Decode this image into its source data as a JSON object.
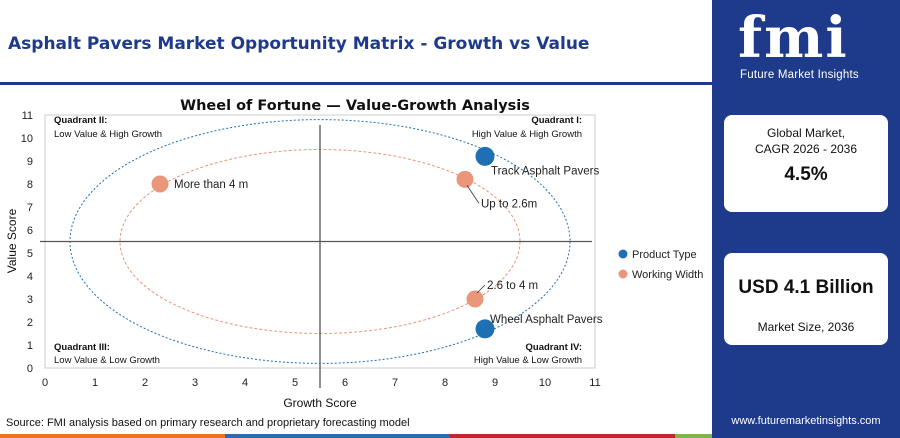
{
  "page": {
    "title": "Asphalt Pavers Market Opportunity Matrix - Growth vs Value",
    "source": "Source: FMI analysis based on primary research and proprietary forecasting model"
  },
  "brand": {
    "logo_text": "fmi",
    "tagline": "Future Market Insights",
    "website": "www.futuremarketinsights.com",
    "primary_color": "#1e3a8a",
    "accent_colors": [
      "#e87722",
      "#2b6cb0",
      "#c1272d",
      "#7ab648"
    ]
  },
  "stats": [
    {
      "label_line1": "Global Market,",
      "label_line2": "CAGR 2026 - 2036",
      "value": "4.5%"
    },
    {
      "value": "USD 4.1 Billion",
      "label": "Market Size, 2036"
    }
  ],
  "chart_data": {
    "type": "scatter",
    "title": "Wheel of Fortune — Value-Growth Analysis",
    "xlabel": "Growth Score",
    "ylabel": "Value Score",
    "xlim": [
      0,
      11
    ],
    "ylim": [
      0,
      11
    ],
    "x_ticks": [
      "0",
      "1",
      "2",
      "3",
      "4",
      "5",
      "6",
      "7",
      "8",
      "9",
      "10",
      "11"
    ],
    "y_ticks": [
      "0",
      "1",
      "2",
      "3",
      "4",
      "5",
      "6",
      "7",
      "8",
      "9",
      "10",
      "11"
    ],
    "quadrant_divider": {
      "x": 5.5,
      "y": 5.5
    },
    "quadrants": [
      {
        "title": "Quadrant I:",
        "desc": "High Value & High Growth"
      },
      {
        "title": "Quadrant II:",
        "desc": "Low Value & High Growth"
      },
      {
        "title": "Quadrant III:",
        "desc": "Low Value & Low Growth"
      },
      {
        "title": "Quadrant IV:",
        "desc": "High Value & Low Growth"
      }
    ],
    "legend_position": "right",
    "series": [
      {
        "name": "Product Type",
        "color": "#1f6fb5",
        "ellipse": {
          "cx": 5.5,
          "cy": 5.5,
          "rx": 5.0,
          "ry": 5.3
        },
        "points": [
          {
            "label": "Track Asphalt Pavers",
            "x": 8.8,
            "y": 9.2
          },
          {
            "label": "Wheel Asphalt Pavers",
            "x": 8.8,
            "y": 1.7
          }
        ]
      },
      {
        "name": "Working Width",
        "color": "#e9967a",
        "ellipse": {
          "cx": 5.5,
          "cy": 5.5,
          "rx": 4.0,
          "ry": 4.0
        },
        "points": [
          {
            "label": "More than 4 m",
            "x": 2.3,
            "y": 8.0
          },
          {
            "label": "Up to 2.6m",
            "x": 8.4,
            "y": 8.2
          },
          {
            "label": "2.6 to 4 m",
            "x": 8.6,
            "y": 3.0
          }
        ]
      }
    ]
  }
}
